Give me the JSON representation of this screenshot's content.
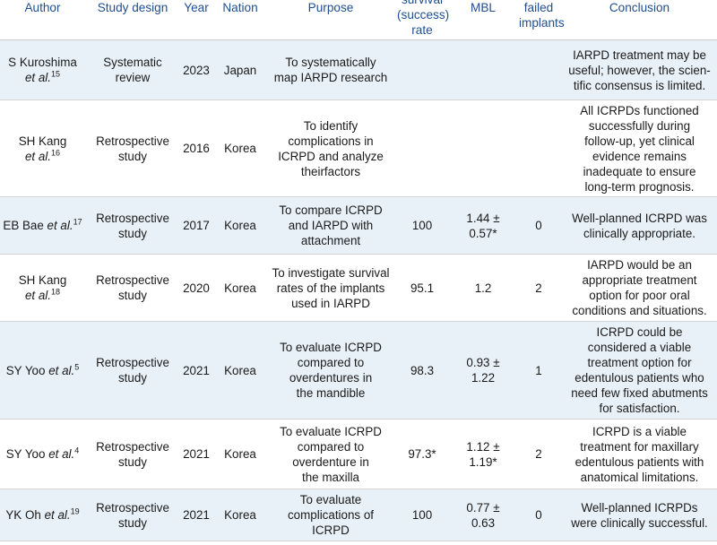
{
  "table": {
    "headers": {
      "author": "Author",
      "study_design": "Study design",
      "year": "Year",
      "nation": "Nation",
      "purpose": "Purpose",
      "survival_line1": "survival",
      "survival_line2": "(success)",
      "survival_line3": "rate",
      "mbl": "MBL",
      "failed_line1": "failed",
      "failed_line2": "implants",
      "conclusion": "Conclusion"
    },
    "rows": [
      {
        "author_name": "S Kuroshima",
        "author_suffix": "et al.",
        "ref": "15",
        "design_l1": "Systematic",
        "design_l2": "review",
        "year": "2023",
        "nation": "Japan",
        "purpose_l1": "To systematically",
        "purpose_l2": "map IARPD research",
        "purpose_l3": "",
        "purpose_l4": "",
        "survival": "",
        "mbl_l1": "",
        "mbl_l2": "",
        "failed": "",
        "concl_l1": "IARPD treatment may be",
        "concl_l2": "useful; however, the scien-",
        "concl_l3": "tific consensus is limited.",
        "concl_l4": "",
        "concl_l5": ""
      },
      {
        "author_name": "SH Kang",
        "author_suffix": "et al.",
        "ref": "16",
        "design_l1": "Retrospective",
        "design_l2": "study",
        "year": "2016",
        "nation": "Korea",
        "purpose_l1": "To identify",
        "purpose_l2": "complications in",
        "purpose_l3": "ICRPD and analyze",
        "purpose_l4": "theirfactors",
        "survival": "",
        "mbl_l1": "",
        "mbl_l2": "",
        "failed": "",
        "concl_l1": "All ICRPDs functioned",
        "concl_l2": "successfully during",
        "concl_l3": "follow-up, yet clinical",
        "concl_l4": "evidence remains",
        "concl_l5": "inadequate to ensure",
        "concl_l6": "long-term prognosis."
      },
      {
        "author_name": "EB Bae",
        "author_suffix": "et al.",
        "ref": "17",
        "design_l1": "Retrospective",
        "design_l2": "study",
        "year": "2017",
        "nation": "Korea",
        "purpose_l1": "To compare ICRPD",
        "purpose_l2": "and IARPD with",
        "purpose_l3": "attachment",
        "purpose_l4": "",
        "survival": "100",
        "mbl_l1": "1.44 ±",
        "mbl_l2": "0.57*",
        "failed": "0",
        "concl_l1": "Well-planned ICRPD was",
        "concl_l2": "clinically appropriate.",
        "concl_l3": "",
        "concl_l4": "",
        "concl_l5": ""
      },
      {
        "author_name": "SH Kang",
        "author_suffix": "et al.",
        "ref": "18",
        "design_l1": "Retrospective",
        "design_l2": "study",
        "year": "2020",
        "nation": "Korea",
        "purpose_l1": "To investigate survival",
        "purpose_l2": "rates of the implants",
        "purpose_l3": "used in IARPD",
        "purpose_l4": "",
        "survival": "95.1",
        "mbl_l1": "1.2",
        "mbl_l2": "",
        "failed": "2",
        "concl_l1": "IARPD would be an",
        "concl_l2": "appropriate treatment",
        "concl_l3": "option for poor oral",
        "concl_l4": "conditions and situations.",
        "concl_l5": ""
      },
      {
        "author_name": "SY Yoo",
        "author_suffix": "et al.",
        "ref": "5",
        "design_l1": "Retrospective",
        "design_l2": "study",
        "year": "2021",
        "nation": "Korea",
        "purpose_l1": "To evaluate ICRPD",
        "purpose_l2": "compared to",
        "purpose_l3": "overdentures in",
        "purpose_l4": "the mandible",
        "survival": "98.3",
        "mbl_l1": "0.93 ±",
        "mbl_l2": "1.22",
        "failed": "1",
        "concl_l1": "ICRPD could be",
        "concl_l2": "considered a viable",
        "concl_l3": "treatment option for",
        "concl_l4": "edentulous patients who",
        "concl_l5": "need few fixed abutments",
        "concl_l6": "for satisfaction."
      },
      {
        "author_name": "SY Yoo",
        "author_suffix": "et al.",
        "ref": "4",
        "design_l1": "Retrospective",
        "design_l2": "study",
        "year": "2021",
        "nation": "Korea",
        "purpose_l1": "To evaluate ICRPD",
        "purpose_l2": "compared to",
        "purpose_l3": "overdenture in",
        "purpose_l4": "the maxilla",
        "survival": "97.3*",
        "mbl_l1": "1.12 ±",
        "mbl_l2": "1.19*",
        "failed": "2",
        "concl_l1": "ICRPD is a viable",
        "concl_l2": "treatment for maxillary",
        "concl_l3": "edentulous patients with",
        "concl_l4": "anatomical limitations.",
        "concl_l5": ""
      },
      {
        "author_name": "YK Oh",
        "author_suffix": "et al.",
        "ref": "19",
        "design_l1": "Retrospective",
        "design_l2": "study",
        "year": "2021",
        "nation": "Korea",
        "purpose_l1": "To evaluate",
        "purpose_l2": "complications of",
        "purpose_l3": "ICRPD",
        "purpose_l4": "",
        "survival": "100",
        "mbl_l1": "0.77 ±",
        "mbl_l2": "0.63",
        "failed": "0",
        "concl_l1": "Well-planned ICRPDs",
        "concl_l2": "were clinically successful.",
        "concl_l3": "",
        "concl_l4": "",
        "concl_l5": ""
      }
    ]
  }
}
